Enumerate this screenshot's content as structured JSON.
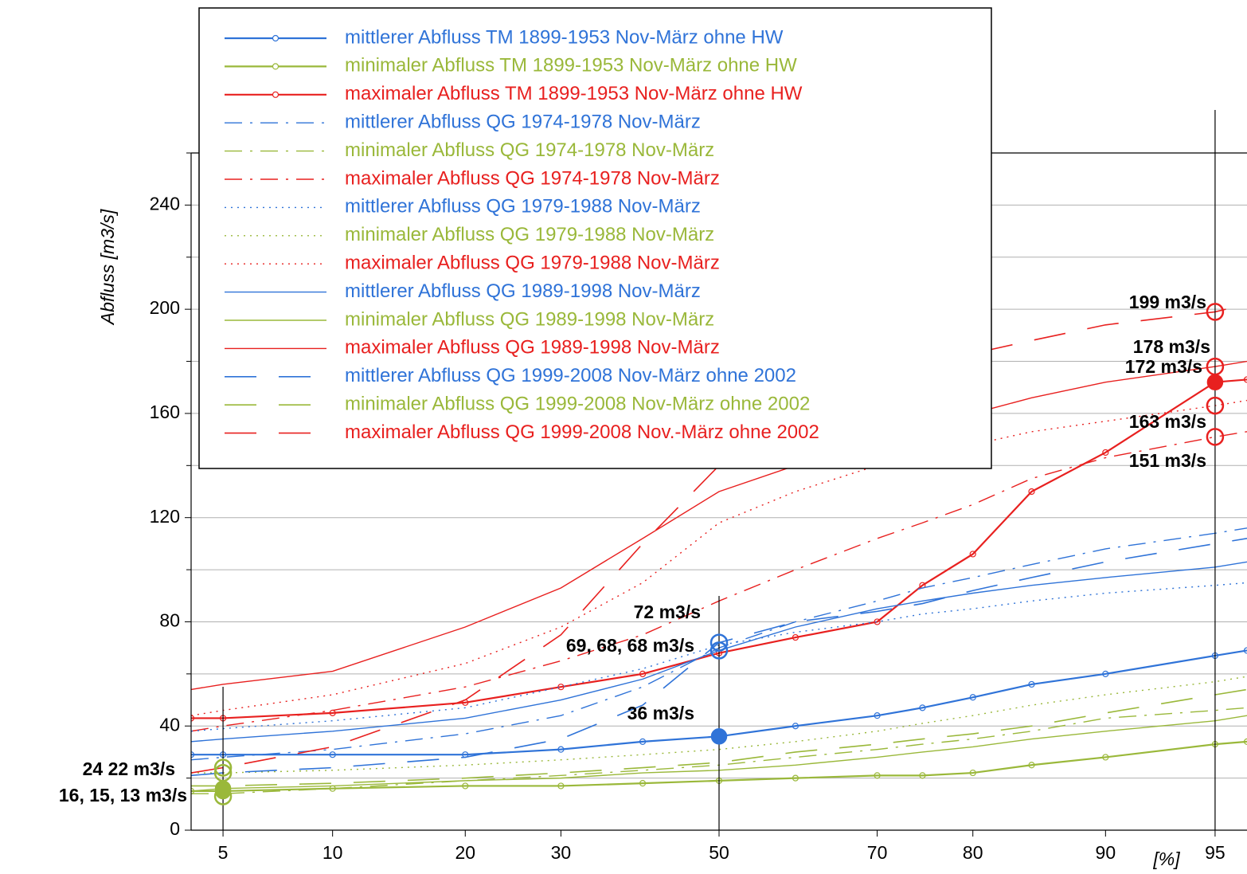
{
  "chart_data": {
    "type": "line",
    "y_label": "Abfluss [m3/s]",
    "x_label": "[%]",
    "xscale": "probability",
    "xlim": [
      4,
      96
    ],
    "xticks": [
      5,
      10,
      20,
      30,
      50,
      70,
      80,
      90,
      95
    ],
    "ylim": [
      0,
      260
    ],
    "yticks": [
      0,
      40,
      80,
      120,
      160,
      200,
      240
    ],
    "yminorticks": [
      20,
      60,
      100,
      140,
      180,
      220,
      260
    ],
    "grid": true,
    "legend": "top-left",
    "x": [
      4,
      5,
      10,
      20,
      30,
      40,
      50,
      60,
      70,
      75,
      80,
      85,
      90,
      95,
      96
    ],
    "series": [
      {
        "name": "mittlerer Abfluss TM 1899-1953 Nov-März ohne HW",
        "color": "#2f73d8",
        "style": "solid-marker",
        "values": [
          29,
          29,
          29,
          29,
          31,
          34,
          36,
          40,
          44,
          47,
          51,
          56,
          60,
          67,
          69
        ]
      },
      {
        "name": "minimaler Abfluss TM 1899-1953 Nov-März ohne HW",
        "color": "#9ab83a",
        "style": "solid-marker",
        "values": [
          15,
          15,
          16,
          17,
          17,
          18,
          19,
          20,
          21,
          21,
          22,
          25,
          28,
          33,
          34
        ]
      },
      {
        "name": "maximaler Abfluss TM 1899-1953 Nov-März ohne HW",
        "color": "#e8201f",
        "style": "solid-marker",
        "values": [
          43,
          43,
          45,
          49,
          55,
          60,
          68,
          74,
          80,
          94,
          106,
          130,
          145,
          172,
          173
        ]
      },
      {
        "name": "mittlerer Abfluss QG 1974-1978 Nov-März",
        "color": "#2f73d8",
        "style": "dashdot",
        "values": [
          27,
          28,
          31,
          37,
          44,
          55,
          70,
          80,
          88,
          93,
          97,
          102,
          108,
          114,
          116
        ]
      },
      {
        "name": "minimaler Abfluss QG 1974-1978 Nov-März",
        "color": "#9ab83a",
        "style": "dashdot",
        "values": [
          14,
          14,
          16,
          19,
          21,
          23,
          25,
          28,
          31,
          33,
          35,
          38,
          43,
          46,
          47
        ]
      },
      {
        "name": "maximaler Abfluss QG 1974-1978 Nov-März",
        "color": "#e8201f",
        "style": "dashdot",
        "values": [
          38,
          40,
          46,
          55,
          65,
          75,
          88,
          100,
          112,
          118,
          125,
          135,
          143,
          151,
          153
        ]
      },
      {
        "name": "mittlerer Abfluss QG 1979-1988 Nov-März",
        "color": "#2f73d8",
        "style": "dotted",
        "values": [
          38,
          39,
          42,
          47,
          55,
          62,
          71,
          76,
          80,
          83,
          85,
          88,
          91,
          94,
          95
        ]
      },
      {
        "name": "minimaler Abfluss QG 1979-1988 Nov-März",
        "color": "#9ab83a",
        "style": "dotted",
        "values": [
          22,
          22,
          23,
          25,
          27,
          29,
          31,
          34,
          38,
          41,
          44,
          48,
          52,
          57,
          59
        ]
      },
      {
        "name": "maximaler Abfluss QG 1979-1988 Nov-März",
        "color": "#e8201f",
        "style": "dotted",
        "values": [
          44,
          46,
          52,
          64,
          78,
          95,
          118,
          130,
          140,
          144,
          148,
          153,
          157,
          163,
          165
        ]
      },
      {
        "name": "mittlerer Abfluss QG 1989-1998 Nov-März",
        "color": "#2f73d8",
        "style": "solid",
        "values": [
          34,
          35,
          38,
          43,
          50,
          58,
          69,
          78,
          85,
          88,
          91,
          94,
          97,
          101,
          103
        ]
      },
      {
        "name": "minimaler Abfluss QG 1989-1998 Nov-März",
        "color": "#9ab83a",
        "style": "solid",
        "values": [
          15,
          16,
          17,
          19,
          20,
          22,
          23,
          25,
          28,
          30,
          32,
          35,
          38,
          42,
          44
        ]
      },
      {
        "name": "maximaler Abfluss QG 1989-1998 Nov-März",
        "color": "#e8201f",
        "style": "solid",
        "values": [
          54,
          56,
          61,
          78,
          93,
          112,
          130,
          140,
          150,
          155,
          160,
          166,
          172,
          178,
          180
        ]
      },
      {
        "name": "mittlerer Abfluss QG 1999-2008 Nov-März ohne 2002",
        "color": "#2f73d8",
        "style": "longdash",
        "values": [
          21,
          22,
          24,
          28,
          35,
          48,
          72,
          80,
          84,
          87,
          92,
          97,
          103,
          110,
          112
        ]
      },
      {
        "name": "minimaler Abfluss QG 1999-2008 Nov-März ohne 2002",
        "color": "#9ab83a",
        "style": "longdash",
        "values": [
          17,
          17,
          18,
          20,
          22,
          24,
          26,
          30,
          33,
          35,
          37,
          40,
          45,
          52,
          54
        ]
      },
      {
        "name": "maximaler Abfluss QG 1999-2008 Nov.-März ohne 2002",
        "color": "#e8201f",
        "style": "longdash",
        "values": [
          22,
          24,
          32,
          50,
          75,
          110,
          140,
          160,
          172,
          178,
          183,
          188,
          194,
          199,
          202
        ]
      }
    ],
    "highlight_points": [
      {
        "x": 5,
        "y": 24,
        "filled": false,
        "color": "#9ab83a"
      },
      {
        "x": 5,
        "y": 22,
        "filled": false,
        "color": "#9ab83a"
      },
      {
        "x": 5,
        "y": 16,
        "filled": true,
        "color": "#9ab83a"
      },
      {
        "x": 5,
        "y": 15,
        "filled": true,
        "color": "#9ab83a"
      },
      {
        "x": 5,
        "y": 13,
        "filled": false,
        "color": "#9ab83a"
      },
      {
        "x": 50,
        "y": 72,
        "filled": false,
        "color": "#2f73d8"
      },
      {
        "x": 50,
        "y": 69,
        "filled": false,
        "color": "#2f73d8"
      },
      {
        "x": 50,
        "y": 36,
        "filled": true,
        "color": "#2f73d8"
      },
      {
        "x": 95,
        "y": 199,
        "filled": false,
        "color": "#e8201f"
      },
      {
        "x": 95,
        "y": 178,
        "filled": false,
        "color": "#e8201f"
      },
      {
        "x": 95,
        "y": 172,
        "filled": true,
        "color": "#e8201f"
      },
      {
        "x": 95,
        "y": 163,
        "filled": false,
        "color": "#e8201f"
      },
      {
        "x": 95,
        "y": 151,
        "filled": false,
        "color": "#e8201f"
      }
    ],
    "annotations": [
      "24 22 m3/s",
      "16, 15, 13 m3/s",
      "72 m3/s",
      "69, 68, 68 m3/s",
      "36 m3/s",
      "199 m3/s",
      "178 m3/s",
      "172 m3/s",
      "163 m3/s",
      "151 m3/s"
    ]
  }
}
